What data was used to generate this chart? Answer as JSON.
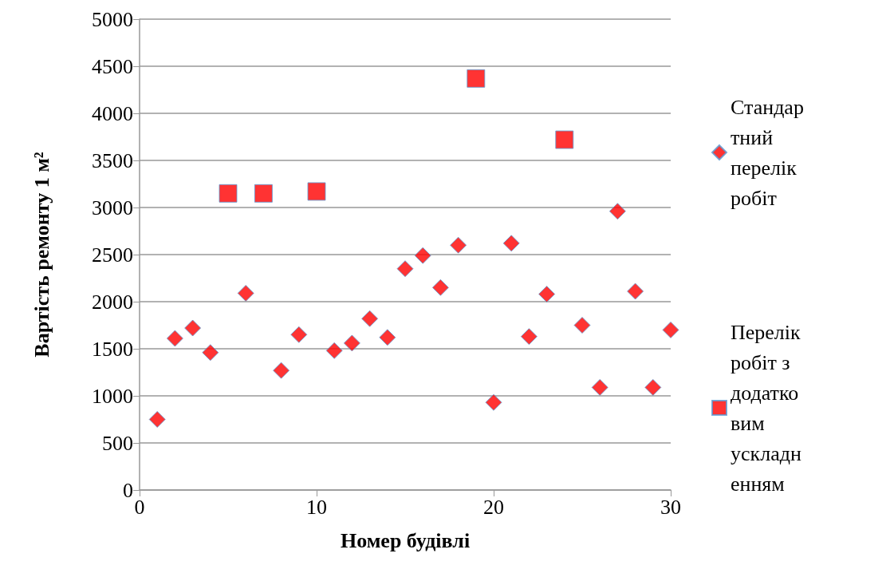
{
  "chart_data": {
    "type": "scatter",
    "xlabel": "Номер будівлі",
    "ylabel": "Вартість ремонту 1 м²",
    "xlim": [
      0,
      30
    ],
    "xticks": [
      0,
      10,
      20,
      30
    ],
    "ylim": [
      0,
      5000
    ],
    "yticks": [
      0,
      500,
      1000,
      1500,
      2000,
      2500,
      3000,
      3500,
      4000,
      4500,
      5000
    ],
    "grid": "y",
    "legend": "right",
    "series": [
      {
        "name": "Стандартний перелік робіт",
        "color": "#ff0000",
        "marker": "diamond",
        "x": [
          1,
          2,
          3,
          4,
          6,
          8,
          9,
          11,
          12,
          13,
          14,
          15,
          16,
          17,
          18,
          20,
          21,
          22,
          23,
          25,
          26,
          27,
          28,
          29,
          30
        ],
        "values": [
          750,
          1610,
          1720,
          1460,
          2090,
          1270,
          1650,
          1480,
          1560,
          1820,
          1620,
          2350,
          2490,
          2150,
          2600,
          930,
          2620,
          1630,
          2080,
          1750,
          1090,
          2960,
          2110,
          1090,
          1700
        ]
      },
      {
        "name": "Перелік робіт з додатковим ускладненням",
        "color": "#ff0000",
        "marker": "square",
        "x": [
          5,
          7,
          10,
          19,
          24
        ],
        "values": [
          3150,
          3150,
          3170,
          4370,
          3720
        ]
      }
    ]
  }
}
